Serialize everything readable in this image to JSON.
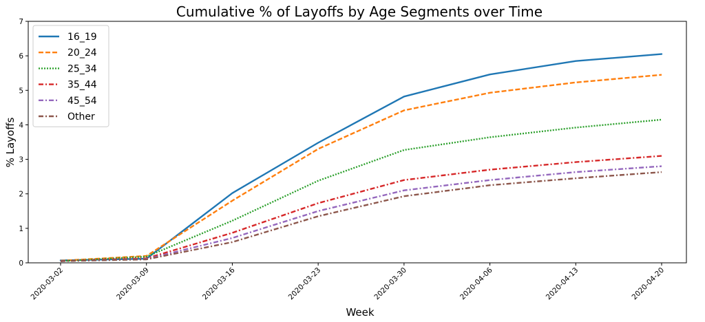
{
  "chart_data": {
    "type": "line",
    "title": "Cumulative % of Layoffs by Age Segments over Time",
    "xlabel": "Week",
    "ylabel": "% Layoffs",
    "x": [
      "2020-03-02",
      "2020-03-09",
      "2020-03-16",
      "2020-03-23",
      "2020-03-30",
      "2020-04-06",
      "2020-04-13",
      "2020-04-20"
    ],
    "ylim": [
      0,
      7
    ],
    "yticks": [
      "0",
      "1",
      "2",
      "3",
      "4",
      "5",
      "6",
      "7"
    ],
    "grid": false,
    "legend_position": "top-left",
    "series": [
      {
        "name": "16_19",
        "color": "#1f77b4",
        "dash": "solid",
        "values": [
          0.07,
          0.12,
          2.02,
          3.48,
          4.82,
          5.46,
          5.85,
          6.05
        ]
      },
      {
        "name": "20_24",
        "color": "#ff7f0e",
        "dash": "dashed",
        "values": [
          0.06,
          0.2,
          1.8,
          3.3,
          4.42,
          4.93,
          5.23,
          5.45
        ]
      },
      {
        "name": "25_34",
        "color": "#2ca02c",
        "dash": "dotted",
        "values": [
          0.05,
          0.18,
          1.22,
          2.38,
          3.27,
          3.64,
          3.92,
          4.15
        ]
      },
      {
        "name": "35_44",
        "color": "#d62728",
        "dash": "dashdot",
        "values": [
          0.05,
          0.13,
          0.87,
          1.73,
          2.4,
          2.7,
          2.92,
          3.1
        ]
      },
      {
        "name": "45_54",
        "color": "#9467bd",
        "dash": "dashdot",
        "values": [
          0.05,
          0.11,
          0.72,
          1.5,
          2.1,
          2.4,
          2.63,
          2.8
        ]
      },
      {
        "name": "Other",
        "color": "#8c564b",
        "dash": "dashdot",
        "values": [
          0.05,
          0.1,
          0.6,
          1.35,
          1.93,
          2.25,
          2.45,
          2.63
        ]
      }
    ]
  }
}
